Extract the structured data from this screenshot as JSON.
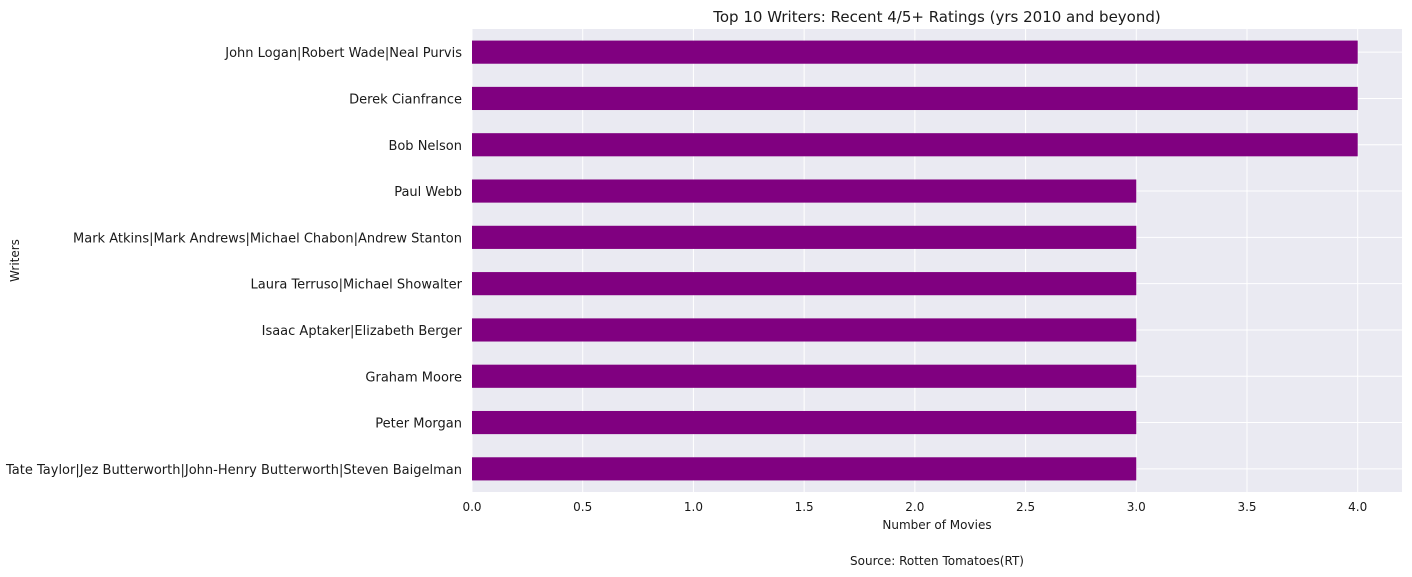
{
  "chart_data": {
    "type": "bar",
    "orientation": "horizontal",
    "title": "Top 10 Writers: Recent 4/5+ Ratings (yrs 2010 and beyond)",
    "xlabel": "Number of Movies",
    "ylabel": "Writers",
    "caption": "Source: Rotten Tomatoes(RT)",
    "categories": [
      "John Logan|Robert Wade|Neal Purvis",
      "Derek Cianfrance",
      "Bob Nelson",
      "Paul Webb",
      "Mark Atkins|Mark Andrews|Michael Chabon|Andrew Stanton",
      "Laura Terruso|Michael Showalter",
      "Isaac Aptaker|Elizabeth Berger",
      "Graham Moore",
      "Peter Morgan",
      "Tate Taylor|Jez Butterworth|John-Henry Butterworth|Steven Baigelman"
    ],
    "values": [
      4,
      4,
      4,
      3,
      3,
      3,
      3,
      3,
      3,
      3
    ],
    "xlim": [
      0,
      4.2
    ],
    "xticks": [
      "0.0",
      "0.5",
      "1.0",
      "1.5",
      "2.0",
      "2.5",
      "3.0",
      "3.5",
      "4.0"
    ],
    "grid": true,
    "bar_color": "#800080",
    "background_color": "#EAEAF2"
  }
}
